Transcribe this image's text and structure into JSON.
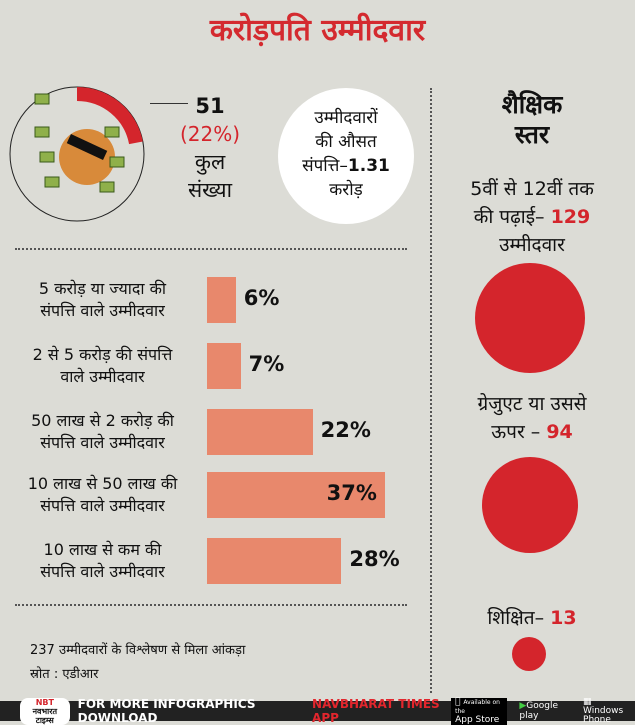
{
  "title": "करोड़पति उम्मीदवार",
  "summary": {
    "count": "51",
    "percent": "(22%)",
    "label_line1": "कुल",
    "label_line2": "संख्या",
    "share": 22
  },
  "average": {
    "line1": "उम्मीदवारों",
    "line2": "की औसत",
    "line3": "संपत्ति–",
    "value": "1.31",
    "line4": "करोड़"
  },
  "chart_data": {
    "type": "bar",
    "orientation": "horizontal",
    "categories": [
      "5 करोड़ या ज्यादा की संपत्ति वाले उम्मीदवार",
      "2 से 5 करोड़ की संपत्ति वाले उम्मीदवार",
      "50 लाख से 2 करोड़ की संपत्ति वाले उम्मीदवार",
      "10 लाख से 50 लाख की संपत्ति वाले उम्मीदवार",
      "10 लाख से कम की संपत्ति वाले उम्मीदवार"
    ],
    "values": [
      6,
      7,
      22,
      37,
      28
    ],
    "labels": [
      "6%",
      "7%",
      "22%",
      "37%",
      "28%"
    ],
    "color": "#e8886c"
  },
  "category_lines": [
    [
      "5 करोड़ या ज्यादा की",
      "संपत्ति वाले उम्मीदवार"
    ],
    [
      "2 से 5 करोड़ की संपत्ति",
      "वाले उम्मीदवार"
    ],
    [
      "50 लाख से 2 करोड़ की",
      "संपत्ति वाले उम्मीदवार"
    ],
    [
      "10 लाख से 50 लाख की",
      "संपत्ति वाले उम्मीदवार"
    ],
    [
      "10 लाख से कम की",
      "संपत्ति वाले उम्मीदवार"
    ]
  ],
  "note": "237 उम्मीदवारों के विश्लेषण से मिला आंकड़ा",
  "source": "स्रोत : एडीआर",
  "education": {
    "heading1": "शैक्षिक",
    "heading2": "स्तर",
    "items": [
      {
        "text1": "5वीं से 12वीं तक",
        "text2": "की पढ़ाई–",
        "value": "129",
        "text3": "उम्मीदवार"
      },
      {
        "text1": "ग्रेजुएट या उससे",
        "text2": "ऊपर –",
        "value": "94"
      },
      {
        "text1": "शिक्षित–",
        "value": "13"
      }
    ],
    "color": "#d4252c"
  },
  "footer": {
    "logo_top": "NBT",
    "logo_bottom": "नवभारत टाइम्स",
    "text": "FOR MORE  INFOGRAPHICS DOWNLOAD",
    "app": "NAVBHARAT  TIMES  APP",
    "appstore_small": "Available on the",
    "appstore": "App Store",
    "googleplay": "Google play",
    "windows1": "Windows",
    "windows2": "Phone"
  }
}
